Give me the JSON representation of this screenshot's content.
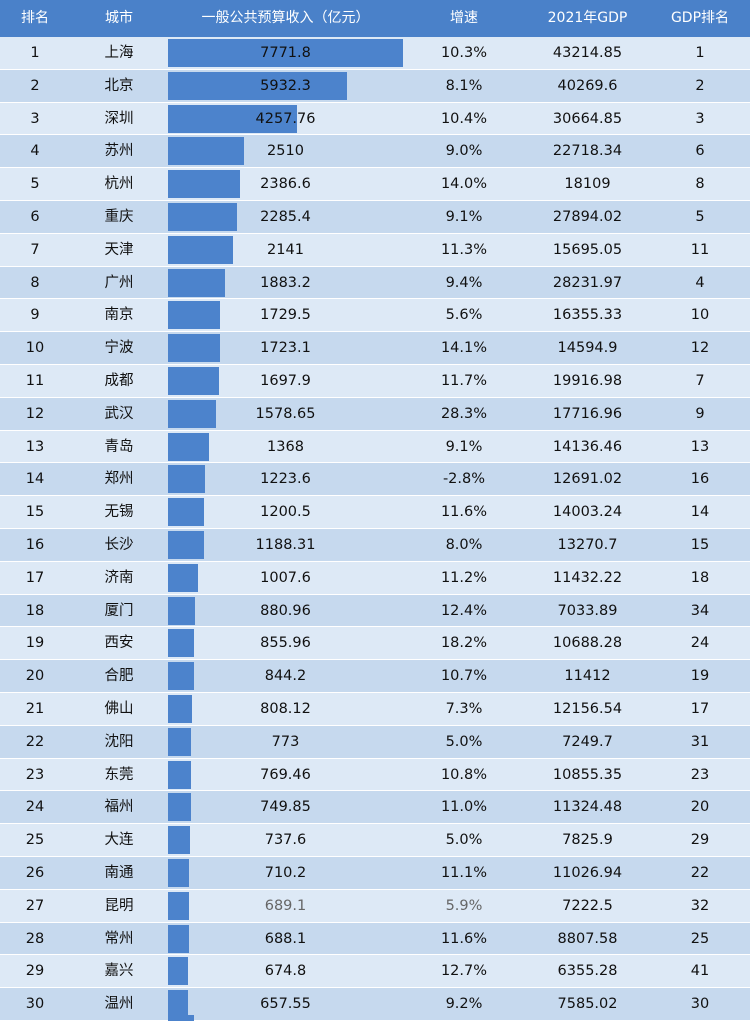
{
  "chart_data": {
    "type": "table",
    "headers": {
      "rank": "排名",
      "city": "城市",
      "revenue": "一般公共预算收入（亿元）",
      "growth": "增速",
      "gdp": "2021年GDP",
      "gdp_rank": "GDP排名"
    },
    "revenue_max": 7771.8,
    "colors": {
      "header": "#4a81c9",
      "bar": "#4c83cc",
      "row_light": "#dde9f6",
      "row_dark": "#c6d9ee"
    },
    "rows": [
      {
        "rank": "1",
        "city": "上海",
        "revenue": "7771.8",
        "revenue_value": 7771.8,
        "growth": "10.3%",
        "gdp": "43214.85",
        "gdp_rank": "1"
      },
      {
        "rank": "2",
        "city": "北京",
        "revenue": "5932.3",
        "revenue_value": 5932.3,
        "growth": "8.1%",
        "gdp": "40269.6",
        "gdp_rank": "2"
      },
      {
        "rank": "3",
        "city": "深圳",
        "revenue": "4257.76",
        "revenue_value": 4257.76,
        "growth": "10.4%",
        "gdp": "30664.85",
        "gdp_rank": "3"
      },
      {
        "rank": "4",
        "city": "苏州",
        "revenue": "2510",
        "revenue_value": 2510,
        "growth": "9.0%",
        "gdp": "22718.34",
        "gdp_rank": "6"
      },
      {
        "rank": "5",
        "city": "杭州",
        "revenue": "2386.6",
        "revenue_value": 2386.6,
        "growth": "14.0%",
        "gdp": "18109",
        "gdp_rank": "8"
      },
      {
        "rank": "6",
        "city": "重庆",
        "revenue": "2285.4",
        "revenue_value": 2285.4,
        "growth": "9.1%",
        "gdp": "27894.02",
        "gdp_rank": "5"
      },
      {
        "rank": "7",
        "city": "天津",
        "revenue": "2141",
        "revenue_value": 2141,
        "growth": "11.3%",
        "gdp": "15695.05",
        "gdp_rank": "11"
      },
      {
        "rank": "8",
        "city": "广州",
        "revenue": "1883.2",
        "revenue_value": 1883.2,
        "growth": "9.4%",
        "gdp": "28231.97",
        "gdp_rank": "4"
      },
      {
        "rank": "9",
        "city": "南京",
        "revenue": "1729.5",
        "revenue_value": 1729.5,
        "growth": "5.6%",
        "gdp": "16355.33",
        "gdp_rank": "10"
      },
      {
        "rank": "10",
        "city": "宁波",
        "revenue": "1723.1",
        "revenue_value": 1723.1,
        "growth": "14.1%",
        "gdp": "14594.9",
        "gdp_rank": "12"
      },
      {
        "rank": "11",
        "city": "成都",
        "revenue": "1697.9",
        "revenue_value": 1697.9,
        "growth": "11.7%",
        "gdp": "19916.98",
        "gdp_rank": "7"
      },
      {
        "rank": "12",
        "city": "武汉",
        "revenue": "1578.65",
        "revenue_value": 1578.65,
        "growth": "28.3%",
        "gdp": "17716.96",
        "gdp_rank": "9"
      },
      {
        "rank": "13",
        "city": "青岛",
        "revenue": "1368",
        "revenue_value": 1368,
        "growth": "9.1%",
        "gdp": "14136.46",
        "gdp_rank": "13"
      },
      {
        "rank": "14",
        "city": "郑州",
        "revenue": "1223.6",
        "revenue_value": 1223.6,
        "growth": "-2.8%",
        "gdp": "12691.02",
        "gdp_rank": "16"
      },
      {
        "rank": "15",
        "city": "无锡",
        "revenue": "1200.5",
        "revenue_value": 1200.5,
        "growth": "11.6%",
        "gdp": "14003.24",
        "gdp_rank": "14"
      },
      {
        "rank": "16",
        "city": "长沙",
        "revenue": "1188.31",
        "revenue_value": 1188.31,
        "growth": "8.0%",
        "gdp": "13270.7",
        "gdp_rank": "15"
      },
      {
        "rank": "17",
        "city": "济南",
        "revenue": "1007.6",
        "revenue_value": 1007.6,
        "growth": "11.2%",
        "gdp": "11432.22",
        "gdp_rank": "18"
      },
      {
        "rank": "18",
        "city": "厦门",
        "revenue": "880.96",
        "revenue_value": 880.96,
        "growth": "12.4%",
        "gdp": "7033.89",
        "gdp_rank": "34"
      },
      {
        "rank": "19",
        "city": "西安",
        "revenue": "855.96",
        "revenue_value": 855.96,
        "growth": "18.2%",
        "gdp": "10688.28",
        "gdp_rank": "24"
      },
      {
        "rank": "20",
        "city": "合肥",
        "revenue": "844.2",
        "revenue_value": 844.2,
        "growth": "10.7%",
        "gdp": "11412",
        "gdp_rank": "19"
      },
      {
        "rank": "21",
        "city": "佛山",
        "revenue": "808.12",
        "revenue_value": 808.12,
        "growth": "7.3%",
        "gdp": "12156.54",
        "gdp_rank": "17"
      },
      {
        "rank": "22",
        "city": "沈阳",
        "revenue": "773",
        "revenue_value": 773,
        "growth": "5.0%",
        "gdp": "7249.7",
        "gdp_rank": "31"
      },
      {
        "rank": "23",
        "city": "东莞",
        "revenue": "769.46",
        "revenue_value": 769.46,
        "growth": "10.8%",
        "gdp": "10855.35",
        "gdp_rank": "23"
      },
      {
        "rank": "24",
        "city": "福州",
        "revenue": "749.85",
        "revenue_value": 749.85,
        "growth": "11.0%",
        "gdp": "11324.48",
        "gdp_rank": "20"
      },
      {
        "rank": "25",
        "city": "大连",
        "revenue": "737.6",
        "revenue_value": 737.6,
        "growth": "5.0%",
        "gdp": "7825.9",
        "gdp_rank": "29"
      },
      {
        "rank": "26",
        "city": "南通",
        "revenue": "710.2",
        "revenue_value": 710.2,
        "growth": "11.1%",
        "gdp": "11026.94",
        "gdp_rank": "22"
      },
      {
        "rank": "27",
        "city": "昆明",
        "revenue": "689.1",
        "revenue_value": 689.1,
        "growth": "5.9%",
        "gdp": "7222.5",
        "gdp_rank": "32"
      },
      {
        "rank": "28",
        "city": "常州",
        "revenue": "688.1",
        "revenue_value": 688.1,
        "growth": "11.6%",
        "gdp": "8807.58",
        "gdp_rank": "25"
      },
      {
        "rank": "29",
        "city": "嘉兴",
        "revenue": "674.8",
        "revenue_value": 674.8,
        "growth": "12.7%",
        "gdp": "6355.28",
        "gdp_rank": "41"
      },
      {
        "rank": "30",
        "city": "温州",
        "revenue": "657.55",
        "revenue_value": 657.55,
        "growth": "9.2%",
        "gdp": "7585.02",
        "gdp_rank": "30"
      }
    ]
  }
}
